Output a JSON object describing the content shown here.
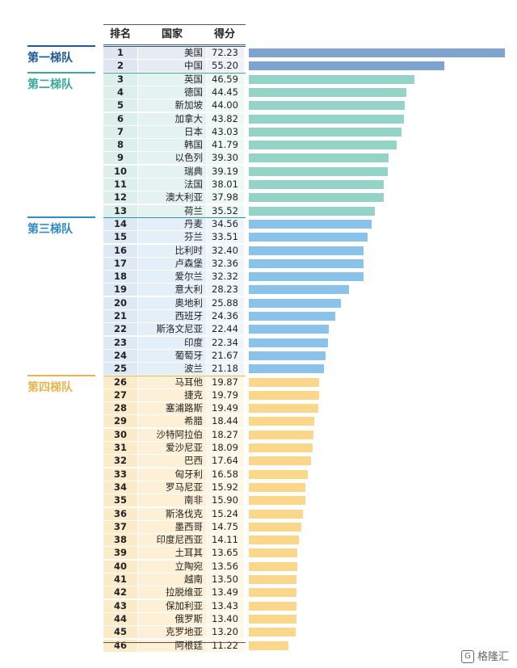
{
  "headers": {
    "rank": "排名",
    "country": "国家",
    "score": "得分"
  },
  "tiers": [
    {
      "label": "第一梯队",
      "color": "#1e5b99",
      "start": 0,
      "end": 2
    },
    {
      "label": "第二梯队",
      "color": "#3aa89a",
      "start": 2,
      "end": 13
    },
    {
      "label": "第三梯队",
      "color": "#2f8cc4",
      "start": 13,
      "end": 25
    },
    {
      "label": "第四梯队",
      "color": "#e8b54c",
      "start": 25,
      "end": 46
    }
  ],
  "tier_styles": [
    {
      "bar": "#7fa3cf",
      "rank_bg": "#dfe6f1",
      "country_bg": "#e6ebf4",
      "score_bg": "#eef2f8"
    },
    {
      "bar": "#94d4c6",
      "rank_bg": "#dcefea",
      "country_bg": "#e4f3ef",
      "score_bg": "#eef8f5"
    },
    {
      "bar": "#89c3e9",
      "rank_bg": "#dde9f5",
      "country_bg": "#e5eff8",
      "score_bg": "#eef5fb"
    },
    {
      "bar": "#fbd78c",
      "rank_bg": "#fcebc8",
      "country_bg": "#fdf0d6",
      "score_bg": "#fef6e6"
    }
  ],
  "chart_data": {
    "type": "bar",
    "title": "",
    "xlabel": "",
    "ylabel": "",
    "xlim": [
      0,
      72.23
    ],
    "categories": [
      "美国",
      "中国",
      "英国",
      "德国",
      "新加坡",
      "加拿大",
      "日本",
      "韩国",
      "以色列",
      "瑞典",
      "法国",
      "澳大利亚",
      "荷兰",
      "丹麦",
      "芬兰",
      "比利时",
      "卢森堡",
      "爱尔兰",
      "意大利",
      "奥地利",
      "西班牙",
      "斯洛文尼亚",
      "印度",
      "葡萄牙",
      "波兰",
      "马耳他",
      "捷克",
      "塞浦路斯",
      "希腊",
      "沙特阿拉伯",
      "爱沙尼亚",
      "巴西",
      "匈牙利",
      "罗马尼亚",
      "南非",
      "斯洛伐克",
      "墨西哥",
      "印度尼西亚",
      "土耳其",
      "立陶宛",
      "越南",
      "拉脱维亚",
      "保加利亚",
      "俄罗斯",
      "克罗地亚",
      "阿根廷"
    ],
    "ranks": [
      "1",
      "2",
      "3",
      "4",
      "5",
      "6",
      "7",
      "8",
      "9",
      "10",
      "11",
      "12",
      "13",
      "14",
      "15",
      "16",
      "17",
      "18",
      "19",
      "20",
      "21",
      "22",
      "23",
      "24",
      "25",
      "26",
      "27",
      "28",
      "29",
      "30",
      "31",
      "32",
      "33",
      "34",
      "35",
      "36",
      "37",
      "38",
      "39",
      "40",
      "41",
      "42",
      "43",
      "44",
      "45",
      "46"
    ],
    "score_labels": [
      "72.23",
      "55.20",
      "46.59",
      "44.45",
      "44.00",
      "43.82",
      "43.03",
      "41.79",
      "39.30",
      "39.19",
      "38.01",
      "37.98",
      "35.52",
      "34.56",
      "33.51",
      "32.40",
      "32.36",
      "32.32",
      "28.23",
      "25.88",
      "24.36",
      "22.44",
      "22.34",
      "21.67",
      "21.18",
      "19.87",
      "19.79",
      "19.49",
      "18.44",
      "18.27",
      "18.09",
      "17.64",
      "16.58",
      "15.92",
      "15.90",
      "15.24",
      "14.75",
      "14.11",
      "13.65",
      "13.56",
      "13.50",
      "13.49",
      "13.43",
      "13.40",
      "13.20",
      "11.22"
    ],
    "values": [
      72.23,
      55.2,
      46.59,
      44.45,
      44.0,
      43.82,
      43.03,
      41.79,
      39.3,
      39.19,
      38.01,
      37.98,
      35.52,
      34.56,
      33.51,
      32.4,
      32.36,
      32.32,
      28.23,
      25.88,
      24.36,
      22.44,
      22.34,
      21.67,
      21.18,
      19.87,
      19.79,
      19.49,
      18.44,
      18.27,
      18.09,
      17.64,
      16.58,
      15.92,
      15.9,
      15.24,
      14.75,
      14.11,
      13.65,
      13.56,
      13.5,
      13.49,
      13.43,
      13.4,
      13.2,
      11.22
    ]
  },
  "watermark": {
    "logo": "G",
    "text": "格隆汇"
  }
}
